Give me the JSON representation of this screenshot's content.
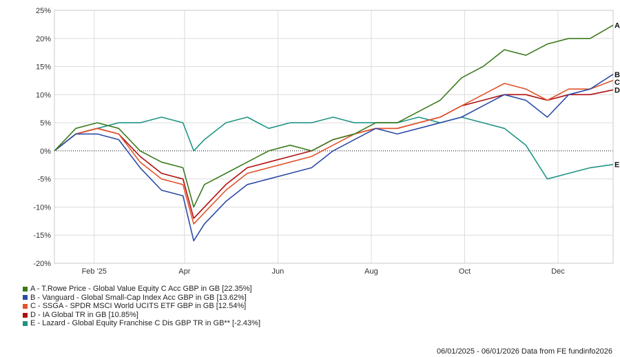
{
  "chart_data": {
    "type": "line",
    "period_start": "2025-01-06",
    "period_end": "2026-01-06",
    "ylim": [
      -20,
      25
    ],
    "yticks": [
      -20,
      -15,
      -10,
      -5,
      0,
      5,
      10,
      15,
      20,
      25
    ],
    "ytick_labels": [
      "-20%",
      "-15%",
      "-10%",
      "-5%",
      "0%",
      "5%",
      "10%",
      "15%",
      "20%",
      "25%"
    ],
    "xticks": [
      {
        "label": "Feb '25",
        "date": "2025-02-01"
      },
      {
        "label": "Apr",
        "date": "2025-04-01"
      },
      {
        "label": "Jun",
        "date": "2025-06-01"
      },
      {
        "label": "Aug",
        "date": "2025-08-01"
      },
      {
        "label": "Oct",
        "date": "2025-10-01"
      },
      {
        "label": "Dec",
        "date": "2025-12-01"
      }
    ],
    "x": [
      "2025-01-06",
      "2025-01-20",
      "2025-02-03",
      "2025-02-17",
      "2025-03-03",
      "2025-03-17",
      "2025-03-31",
      "2025-04-07",
      "2025-04-14",
      "2025-04-28",
      "2025-05-12",
      "2025-05-26",
      "2025-06-09",
      "2025-06-23",
      "2025-07-07",
      "2025-07-21",
      "2025-08-04",
      "2025-08-18",
      "2025-09-01",
      "2025-09-15",
      "2025-09-29",
      "2025-10-13",
      "2025-10-27",
      "2025-11-10",
      "2025-11-24",
      "2025-12-08",
      "2025-12-22",
      "2026-01-06"
    ],
    "series": [
      {
        "name": "A - T.Rowe Price - Global Value Equity C Acc GBP in GB [22.35%]",
        "label": "A",
        "color": "#3a7a1c",
        "values": [
          0,
          4,
          5,
          4,
          0,
          -2,
          -3,
          -10,
          -6,
          -4,
          -2,
          0,
          1,
          0,
          2,
          3,
          5,
          5,
          7,
          9,
          13,
          15,
          18,
          17,
          19,
          20,
          20,
          22.35
        ]
      },
      {
        "name": "B - Vanguard - Global Small-Cap Index Acc GBP in GB [13.62%]",
        "label": "B",
        "color": "#2b4aa6",
        "values": [
          0,
          3,
          3,
          2,
          -3,
          -7,
          -8,
          -16,
          -13,
          -9,
          -6,
          -5,
          -4,
          -3,
          0,
          2,
          4,
          3,
          4,
          5,
          6,
          8,
          10,
          9,
          6,
          10,
          11,
          13.62
        ]
      },
      {
        "name": "C - SSGA - SPDR MSCI World UCITS ETF GBP in GB [12.54%]",
        "label": "C",
        "color": "#e0532b",
        "values": [
          0,
          3,
          4,
          3,
          -2,
          -5,
          -6,
          -13,
          -11,
          -7,
          -4,
          -3,
          -2,
          -1,
          1,
          3,
          4,
          4,
          5,
          6,
          8,
          10,
          12,
          11,
          9,
          11,
          11,
          12.54
        ]
      },
      {
        "name": "D - IA Global TR in GB [10.85%]",
        "label": "D",
        "color": "#b00d0d",
        "values": [
          0,
          3,
          4,
          3,
          -1,
          -4,
          -5,
          -12,
          -10,
          -6,
          -3,
          -2,
          -1,
          0,
          2,
          3,
          4,
          4,
          5,
          6,
          8,
          9,
          10,
          10,
          9,
          10,
          10,
          10.85
        ]
      },
      {
        "name": "E - Lazard - Global Equity Franchise C Dis GBP TR in GB** [-2.43%]",
        "label": "E",
        "color": "#1f9484",
        "values": [
          0,
          3,
          4,
          5,
          5,
          6,
          5,
          0,
          2,
          5,
          6,
          4,
          5,
          5,
          6,
          5,
          5,
          5,
          6,
          5,
          6,
          5,
          4,
          1,
          -5,
          -4,
          -3,
          -2.43
        ]
      }
    ]
  },
  "footer": "06/01/2025 - 06/01/2026 Data from FE fundinfo2026"
}
